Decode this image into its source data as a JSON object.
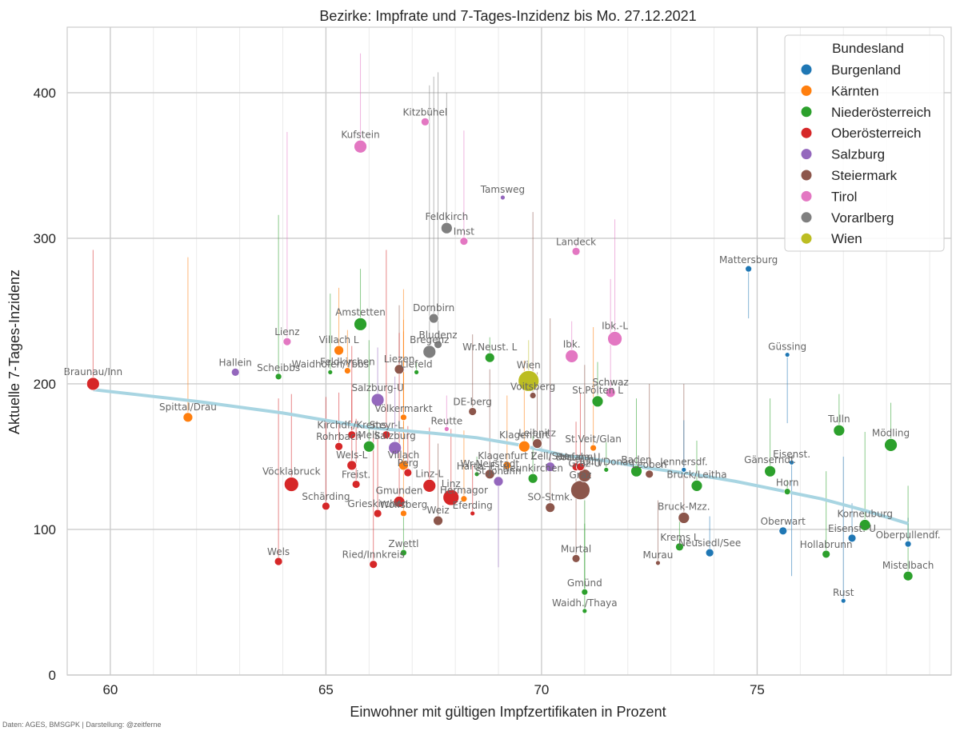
{
  "credit": "Daten: AGES, BMSGPK | Darstellung: @zeitferne",
  "colors": {
    "Burgenland": "#1f77b4",
    "Kärnten": "#ff7f0e",
    "Niederösterreich": "#2ca02c",
    "Oberösterreich": "#d62728",
    "Salzburg": "#9467bd",
    "Steiermark": "#8c564b",
    "Tirol": "#e377c2",
    "Vorarlberg": "#7f7f7f",
    "Wien": "#bcbd22",
    "trend": "#a8d5e2",
    "grid": "#cccccc",
    "minor_grid": "#ebebeb"
  },
  "chart_data": {
    "type": "scatter",
    "title": "Bezirke: Impfrate und 7-Tages-Inzidenz bis Mo. 27.12.2021",
    "xlabel": "Einwohner mit gültigen Impfzertifikaten in Prozent",
    "ylabel": "Aktuelle 7-Tages-Inzidenz",
    "xlim": [
      59,
      79.5
    ],
    "ylim": [
      0,
      445
    ],
    "x_ticks": [
      60,
      65,
      70,
      75
    ],
    "y_ticks": [
      0,
      100,
      200,
      300,
      400
    ],
    "grid": true,
    "legend": {
      "title": "Bundesland",
      "placement": "top-right",
      "entries": [
        "Burgenland",
        "Kärnten",
        "Niederösterreich",
        "Oberösterreich",
        "Salzburg",
        "Steiermark",
        "Tirol",
        "Vorarlberg",
        "Wien"
      ]
    },
    "trend_line": [
      [
        59.6,
        196
      ],
      [
        62,
        188
      ],
      [
        64,
        180
      ],
      [
        66,
        170
      ],
      [
        67.5,
        166
      ],
      [
        68.5,
        163
      ],
      [
        69.5,
        158
      ],
      [
        70.5,
        151
      ],
      [
        71.5,
        147
      ],
      [
        72.5,
        142
      ],
      [
        73.5,
        138
      ],
      [
        74.5,
        133
      ],
      [
        75.5,
        127
      ],
      [
        76.5,
        121
      ],
      [
        77.5,
        113
      ],
      [
        78.5,
        104
      ]
    ],
    "points": [
      {
        "name": "Braunau/Inn",
        "state": "Oberösterreich",
        "x": 59.6,
        "y": 200,
        "prev": 292,
        "size": 8
      },
      {
        "name": "Spittal/Drau",
        "state": "Kärnten",
        "x": 61.8,
        "y": 177,
        "prev": 287,
        "size": 6
      },
      {
        "name": "Hallein",
        "state": "Salzburg",
        "x": 62.9,
        "y": 208,
        "prev": 210,
        "size": 5
      },
      {
        "name": "Scheibbs",
        "state": "Niederösterreich",
        "x": 63.9,
        "y": 205,
        "prev": 316,
        "size": 4
      },
      {
        "name": "Lienz",
        "state": "Tirol",
        "x": 64.1,
        "y": 229,
        "prev": 373,
        "size": 5
      },
      {
        "name": "Vöcklabruck",
        "state": "Oberösterreich",
        "x": 64.2,
        "y": 131,
        "prev": 193,
        "size": 9
      },
      {
        "name": "Wels",
        "state": "Oberösterreich",
        "x": 63.9,
        "y": 78,
        "prev": 190,
        "size": 5
      },
      {
        "name": "Schärding",
        "state": "Oberösterreich",
        "x": 65.0,
        "y": 116,
        "prev": 191,
        "size": 5
      },
      {
        "name": "Waidhofen/Ybbs",
        "state": "Niederösterreich",
        "x": 65.1,
        "y": 208,
        "prev": 262,
        "size": 3
      },
      {
        "name": "Villach L",
        "state": "Kärnten",
        "x": 65.3,
        "y": 223,
        "prev": 266,
        "size": 6
      },
      {
        "name": "Feldkirchen",
        "state": "Kärnten",
        "x": 65.5,
        "y": 209,
        "prev": 237,
        "size": 4
      },
      {
        "name": "Amstetten",
        "state": "Niederösterreich",
        "x": 65.8,
        "y": 241,
        "prev": 279,
        "size": 8
      },
      {
        "name": "Kufstein",
        "state": "Tirol",
        "x": 65.8,
        "y": 363,
        "prev": 427,
        "size": 8
      },
      {
        "name": "Kirchdf./Krems",
        "state": "Oberösterreich",
        "x": 65.6,
        "y": 165,
        "prev": 226,
        "size": 5
      },
      {
        "name": "Rohrbach",
        "state": "Oberösterreich",
        "x": 65.3,
        "y": 157,
        "prev": 194,
        "size": 5
      },
      {
        "name": "Melk",
        "state": "Niederösterreich",
        "x": 66.0,
        "y": 157,
        "prev": 230,
        "size": 7
      },
      {
        "name": "Wels-L",
        "state": "Oberösterreich",
        "x": 65.6,
        "y": 144,
        "prev": 196,
        "size": 6
      },
      {
        "name": "Freist.",
        "state": "Oberösterreich",
        "x": 65.7,
        "y": 131,
        "prev": 176,
        "size": 5
      },
      {
        "name": "Grieskirchen",
        "state": "Oberösterreich",
        "x": 66.2,
        "y": 111,
        "prev": 162,
        "size": 5
      },
      {
        "name": "Ried/Innkreis",
        "state": "Oberösterreich",
        "x": 66.1,
        "y": 76,
        "prev": 166,
        "size": 5
      },
      {
        "name": "Salzburg-U",
        "state": "Salzburg",
        "x": 66.2,
        "y": 189,
        "prev": 225,
        "size": 8
      },
      {
        "name": "Steyr-L",
        "state": "Oberösterreich",
        "x": 66.4,
        "y": 165,
        "prev": 292,
        "size": 5
      },
      {
        "name": "Salzburg",
        "state": "Salzburg",
        "x": 66.6,
        "y": 156,
        "prev": 205,
        "size": 8
      },
      {
        "name": "Liezen",
        "state": "Steiermark",
        "x": 66.7,
        "y": 210,
        "prev": 254,
        "size": 6
      },
      {
        "name": "Liefeld",
        "state": "Niederösterreich",
        "x": 67.1,
        "y": 208,
        "prev": 215,
        "size": 3
      },
      {
        "name": "Völkermarkt",
        "state": "Kärnten",
        "x": 66.8,
        "y": 177,
        "prev": 265,
        "size": 4
      },
      {
        "name": "Villach",
        "state": "Kärnten",
        "x": 66.8,
        "y": 144,
        "prev": 244,
        "size": 6
      },
      {
        "name": "Perg",
        "state": "Oberösterreich",
        "x": 66.9,
        "y": 139,
        "prev": 171,
        "size": 5
      },
      {
        "name": "Gmunden",
        "state": "Oberösterreich",
        "x": 66.7,
        "y": 119,
        "prev": 235,
        "size": 7
      },
      {
        "name": "Wolfsberg",
        "state": "Kärnten",
        "x": 66.8,
        "y": 111,
        "prev": 236,
        "size": 4
      },
      {
        "name": "Zwettl",
        "state": "Niederösterreich",
        "x": 66.8,
        "y": 84,
        "prev": 112,
        "size": 4
      },
      {
        "name": "Linz-L",
        "state": "Oberösterreich",
        "x": 67.4,
        "y": 130,
        "prev": 170,
        "size": 8
      },
      {
        "name": "Dornbirn",
        "state": "Vorarlberg",
        "x": 67.5,
        "y": 245,
        "prev": 411,
        "size": 6
      },
      {
        "name": "Bregenz",
        "state": "Vorarlberg",
        "x": 67.4,
        "y": 222,
        "prev": 405,
        "size": 8
      },
      {
        "name": "Bludenz",
        "state": "Vorarlberg",
        "x": 67.6,
        "y": 227,
        "prev": 414,
        "size": 5
      },
      {
        "name": "Feldkirch",
        "state": "Vorarlberg",
        "x": 67.8,
        "y": 307,
        "prev": 400,
        "size": 7
      },
      {
        "name": "Kitzbühel",
        "state": "Tirol",
        "x": 67.3,
        "y": 380,
        "prev": 381,
        "size": 5
      },
      {
        "name": "Imst",
        "state": "Tirol",
        "x": 68.2,
        "y": 298,
        "prev": 374,
        "size": 5
      },
      {
        "name": "Weiz",
        "state": "Steiermark",
        "x": 67.6,
        "y": 106,
        "prev": 159,
        "size": 6
      },
      {
        "name": "Linz",
        "state": "Oberösterreich",
        "x": 67.9,
        "y": 122,
        "prev": 169,
        "size": 10
      },
      {
        "name": "Hermagor",
        "state": "Kärnten",
        "x": 68.2,
        "y": 121,
        "prev": 168,
        "size": 4
      },
      {
        "name": "Eferding",
        "state": "Oberösterreich",
        "x": 68.4,
        "y": 111,
        "prev": 144,
        "size": 3
      },
      {
        "name": "Reutte",
        "state": "Tirol",
        "x": 67.8,
        "y": 169,
        "prev": 192,
        "size": 3
      },
      {
        "name": "DE-berg",
        "state": "Steiermark",
        "x": 68.4,
        "y": 181,
        "prev": 234,
        "size": 5
      },
      {
        "name": "Hartb.-F.",
        "state": "Niederösterreich",
        "x": 68.5,
        "y": 138,
        "prev": 150,
        "size": 3
      },
      {
        "name": "Wr.Neustadt",
        "state": "Steiermark",
        "x": 68.8,
        "y": 138,
        "prev": 210,
        "size": 6
      },
      {
        "name": "Wr.Neust. L",
        "state": "Niederösterreich",
        "x": 68.8,
        "y": 218,
        "prev": 232,
        "size": 6
      },
      {
        "name": "Tamsweg",
        "state": "Salzburg",
        "x": 69.1,
        "y": 328,
        "prev": 330,
        "size": 3
      },
      {
        "name": "St.Johann",
        "state": "Salzburg",
        "x": 69.0,
        "y": 133,
        "prev": 74,
        "size": 6
      },
      {
        "name": "Klagenfurt L",
        "state": "Kärnten",
        "x": 69.2,
        "y": 144,
        "prev": 192,
        "size": 5
      },
      {
        "name": "Klagenfurt",
        "state": "Kärnten",
        "x": 69.6,
        "y": 157,
        "prev": 216,
        "size": 7
      },
      {
        "name": "Neunkirchen",
        "state": "Niederösterreich",
        "x": 69.8,
        "y": 135,
        "prev": 164,
        "size": 6
      },
      {
        "name": "Wien",
        "state": "Wien",
        "x": 69.7,
        "y": 202,
        "prev": 230,
        "size": 13
      },
      {
        "name": "Voitsberg",
        "state": "Steiermark",
        "x": 69.8,
        "y": 192,
        "prev": 318,
        "size": 4
      },
      {
        "name": "Leibnitz",
        "state": "Steiermark",
        "x": 69.9,
        "y": 159,
        "prev": 208,
        "size": 6
      },
      {
        "name": "Zell/See",
        "state": "Salzburg",
        "x": 70.2,
        "y": 143,
        "prev": 196,
        "size": 6
      },
      {
        "name": "SO-Stmk.",
        "state": "Steiermark",
        "x": 70.2,
        "y": 115,
        "prev": 245,
        "size": 6
      },
      {
        "name": "Murtal",
        "state": "Steiermark",
        "x": 70.8,
        "y": 80,
        "prev": 135,
        "size": 5
      },
      {
        "name": "Ibk.",
        "state": "Tirol",
        "x": 70.7,
        "y": 219,
        "prev": 243,
        "size": 8
      },
      {
        "name": "Landeck",
        "state": "Tirol",
        "x": 70.8,
        "y": 291,
        "prev": 297,
        "size": 5
      },
      {
        "name": "Gmünd",
        "state": "Niederösterreich",
        "x": 71.0,
        "y": 57,
        "prev": 104,
        "size": 4
      },
      {
        "name": "Waidh./Thaya",
        "state": "Niederösterreich",
        "x": 71.0,
        "y": 44,
        "prev": 120,
        "size": 3
      },
      {
        "name": "Graz",
        "state": "Steiermark",
        "x": 70.9,
        "y": 127,
        "prev": 144,
        "size": 12
      },
      {
        "name": "Graz-U",
        "state": "Steiermark",
        "x": 71.0,
        "y": 137,
        "prev": 213,
        "size": 8
      },
      {
        "name": "Braunau",
        "state": "Oberösterreich",
        "x": 70.8,
        "y": 143,
        "prev": 174,
        "size": 5
      },
      {
        "name": "Urfahr-U",
        "state": "Oberösterreich",
        "x": 70.9,
        "y": 143,
        "prev": 194,
        "size": 5
      },
      {
        "name": "St.Veit/Glan",
        "state": "Kärnten",
        "x": 71.2,
        "y": 156,
        "prev": 239,
        "size": 4
      },
      {
        "name": "St.Pölten L",
        "state": "Niederösterreich",
        "x": 71.3,
        "y": 188,
        "prev": 215,
        "size": 7
      },
      {
        "name": "Schwaz",
        "state": "Tirol",
        "x": 71.6,
        "y": 194,
        "prev": 272,
        "size": 6
      },
      {
        "name": "Ibk.-L",
        "state": "Tirol",
        "x": 71.7,
        "y": 231,
        "prev": 313,
        "size": 9
      },
      {
        "name": "Tulln/Donau",
        "state": "Niederösterreich",
        "x": 71.5,
        "y": 141,
        "prev": 160,
        "size": 3
      },
      {
        "name": "Baden",
        "state": "Niederösterreich",
        "x": 72.2,
        "y": 140,
        "prev": 190,
        "size": 7
      },
      {
        "name": "Leoben",
        "state": "Steiermark",
        "x": 72.5,
        "y": 138,
        "prev": 200,
        "size": 5
      },
      {
        "name": "Murau",
        "state": "Steiermark",
        "x": 72.7,
        "y": 77,
        "prev": 120,
        "size": 3
      },
      {
        "name": "Bruck-Mzz.",
        "state": "Steiermark",
        "x": 73.3,
        "y": 108,
        "prev": 200,
        "size": 7
      },
      {
        "name": "Jennersdf.",
        "state": "Burgenland",
        "x": 73.3,
        "y": 141,
        "prev": 175,
        "size": 3
      },
      {
        "name": "Bruck/Leitha",
        "state": "Niederösterreich",
        "x": 73.6,
        "y": 130,
        "prev": 161,
        "size": 7
      },
      {
        "name": "Krems L",
        "state": "Niederösterreich",
        "x": 73.2,
        "y": 88,
        "prev": 111,
        "size": 5
      },
      {
        "name": "Neusiedl/See",
        "state": "Burgenland",
        "x": 73.9,
        "y": 84,
        "prev": 109,
        "size": 5
      },
      {
        "name": "Mattersburg",
        "state": "Burgenland",
        "x": 74.8,
        "y": 279,
        "prev": 245,
        "size": 4
      },
      {
        "name": "Gänserndf.",
        "state": "Niederösterreich",
        "x": 75.3,
        "y": 140,
        "prev": 190,
        "size": 7
      },
      {
        "name": "Oberwart",
        "state": "Burgenland",
        "x": 75.6,
        "y": 99,
        "prev": 97,
        "size": 5
      },
      {
        "name": "Güssing",
        "state": "Burgenland",
        "x": 75.7,
        "y": 220,
        "prev": 173,
        "size": 3
      },
      {
        "name": "Horn",
        "state": "Niederösterreich",
        "x": 75.7,
        "y": 126,
        "prev": 134,
        "size": 4
      },
      {
        "name": "Eisenst.",
        "state": "Burgenland",
        "x": 75.8,
        "y": 146,
        "prev": 68,
        "size": 3
      },
      {
        "name": "Hollabrunn",
        "state": "Niederösterreich",
        "x": 76.6,
        "y": 83,
        "prev": 140,
        "size": 5
      },
      {
        "name": "Tulln",
        "state": "Niederösterreich",
        "x": 76.9,
        "y": 168,
        "prev": 193,
        "size": 7
      },
      {
        "name": "Korneuburg",
        "state": "Niederösterreich",
        "x": 77.5,
        "y": 103,
        "prev": 167,
        "size": 7
      },
      {
        "name": "Eisenst.-U",
        "state": "Burgenland",
        "x": 77.2,
        "y": 94,
        "prev": 118,
        "size": 5
      },
      {
        "name": "Rust",
        "state": "Burgenland",
        "x": 77.0,
        "y": 51,
        "prev": 150,
        "size": 3
      },
      {
        "name": "Mödling",
        "state": "Niederösterreich",
        "x": 78.1,
        "y": 158,
        "prev": 187,
        "size": 8
      },
      {
        "name": "Oberpullendf.",
        "state": "Burgenland",
        "x": 78.5,
        "y": 90,
        "prev": 108,
        "size": 4
      },
      {
        "name": "Mistelbach",
        "state": "Niederösterreich",
        "x": 78.5,
        "y": 68,
        "prev": 130,
        "size": 6
      }
    ]
  }
}
